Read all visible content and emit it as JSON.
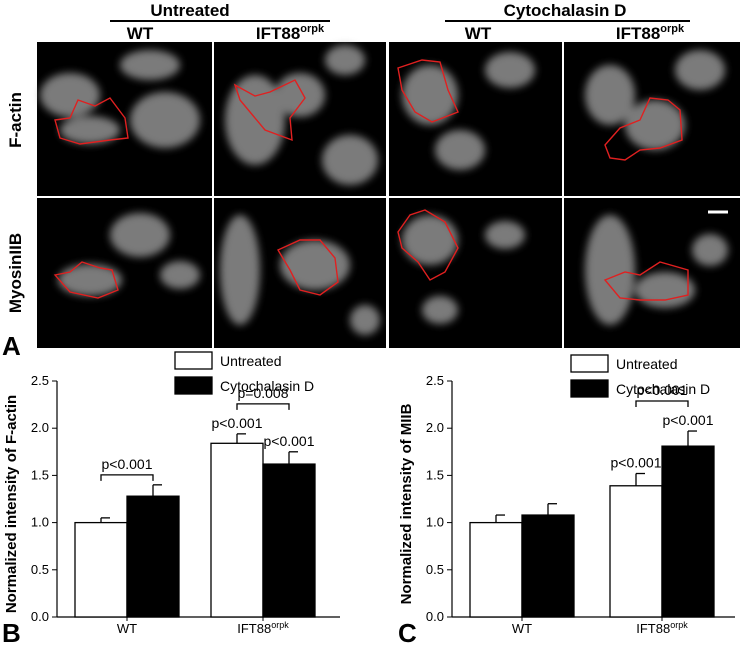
{
  "panel_a": {
    "panel_label": "A",
    "groups": [
      {
        "title": "Untreated",
        "columns": [
          {
            "label": "WT"
          },
          {
            "label": "IFT88",
            "superscript": "orpk"
          }
        ]
      },
      {
        "title": "Cytochalasin D",
        "columns": [
          {
            "label": "WT"
          },
          {
            "label": "IFT88",
            "superscript": "orpk"
          }
        ]
      }
    ],
    "rows": [
      "F-actin",
      "MyosinIIB"
    ]
  },
  "chart_data": [
    {
      "type": "bar",
      "panel_label": "B",
      "y_label": "Normalized intensity of F-actin",
      "categories": [
        "WT",
        "IFT88"
      ],
      "category_superscripts": [
        null,
        "orpk"
      ],
      "series": [
        {
          "name": "Untreated",
          "color": "#ffffff",
          "values": [
            1.0,
            1.84
          ],
          "errors": [
            0.05,
            0.1
          ]
        },
        {
          "name": "Cytochalasin D",
          "color": "#000000",
          "values": [
            1.28,
            1.62
          ],
          "errors": [
            0.12,
            0.13
          ]
        }
      ],
      "ylim": [
        0,
        2.5
      ],
      "yticks": [
        {
          "value": 0,
          "label": "0.0"
        },
        {
          "value": 0.5,
          "label": "0.5"
        },
        {
          "value": 1,
          "label": "1.0"
        },
        {
          "value": 1.5,
          "label": "1.5"
        },
        {
          "value": 2,
          "label": "2.0"
        },
        {
          "value": 2.5,
          "label": "2.5"
        }
      ],
      "annotations": [
        {
          "text": "p<0.001",
          "category": 0,
          "bracket": true
        },
        {
          "text": "p<0.001",
          "category": 1,
          "series": 0
        },
        {
          "text": "p<0.001",
          "category": 1,
          "series": 1
        },
        {
          "text": "p=0.008",
          "category": 1,
          "bracket": true
        }
      ]
    },
    {
      "type": "bar",
      "panel_label": "C",
      "y_label": "Normalized intensity of MIIB",
      "categories": [
        "WT",
        "IFT88"
      ],
      "category_superscripts": [
        null,
        "orpk"
      ],
      "series": [
        {
          "name": "Untreated",
          "color": "#ffffff",
          "values": [
            1.0,
            1.39
          ],
          "errors": [
            0.08,
            0.13
          ]
        },
        {
          "name": "Cytochalasin D",
          "color": "#000000",
          "values": [
            1.08,
            1.81
          ],
          "errors": [
            0.12,
            0.16
          ]
        }
      ],
      "ylim": [
        0,
        2.5
      ],
      "yticks": [
        {
          "value": 0,
          "label": "0.0"
        },
        {
          "value": 0.5,
          "label": "0.5"
        },
        {
          "value": 1,
          "label": "1.0"
        },
        {
          "value": 1.5,
          "label": "1.5"
        },
        {
          "value": 2,
          "label": "2.0"
        },
        {
          "value": 2.5,
          "label": "2.5"
        }
      ],
      "annotations": [
        {
          "text": "p<0.001",
          "category": 1,
          "series": 0
        },
        {
          "text": "p<0.001",
          "category": 1,
          "series": 1
        },
        {
          "text": "p<0.001",
          "category": 1,
          "bracket": true
        }
      ]
    }
  ]
}
